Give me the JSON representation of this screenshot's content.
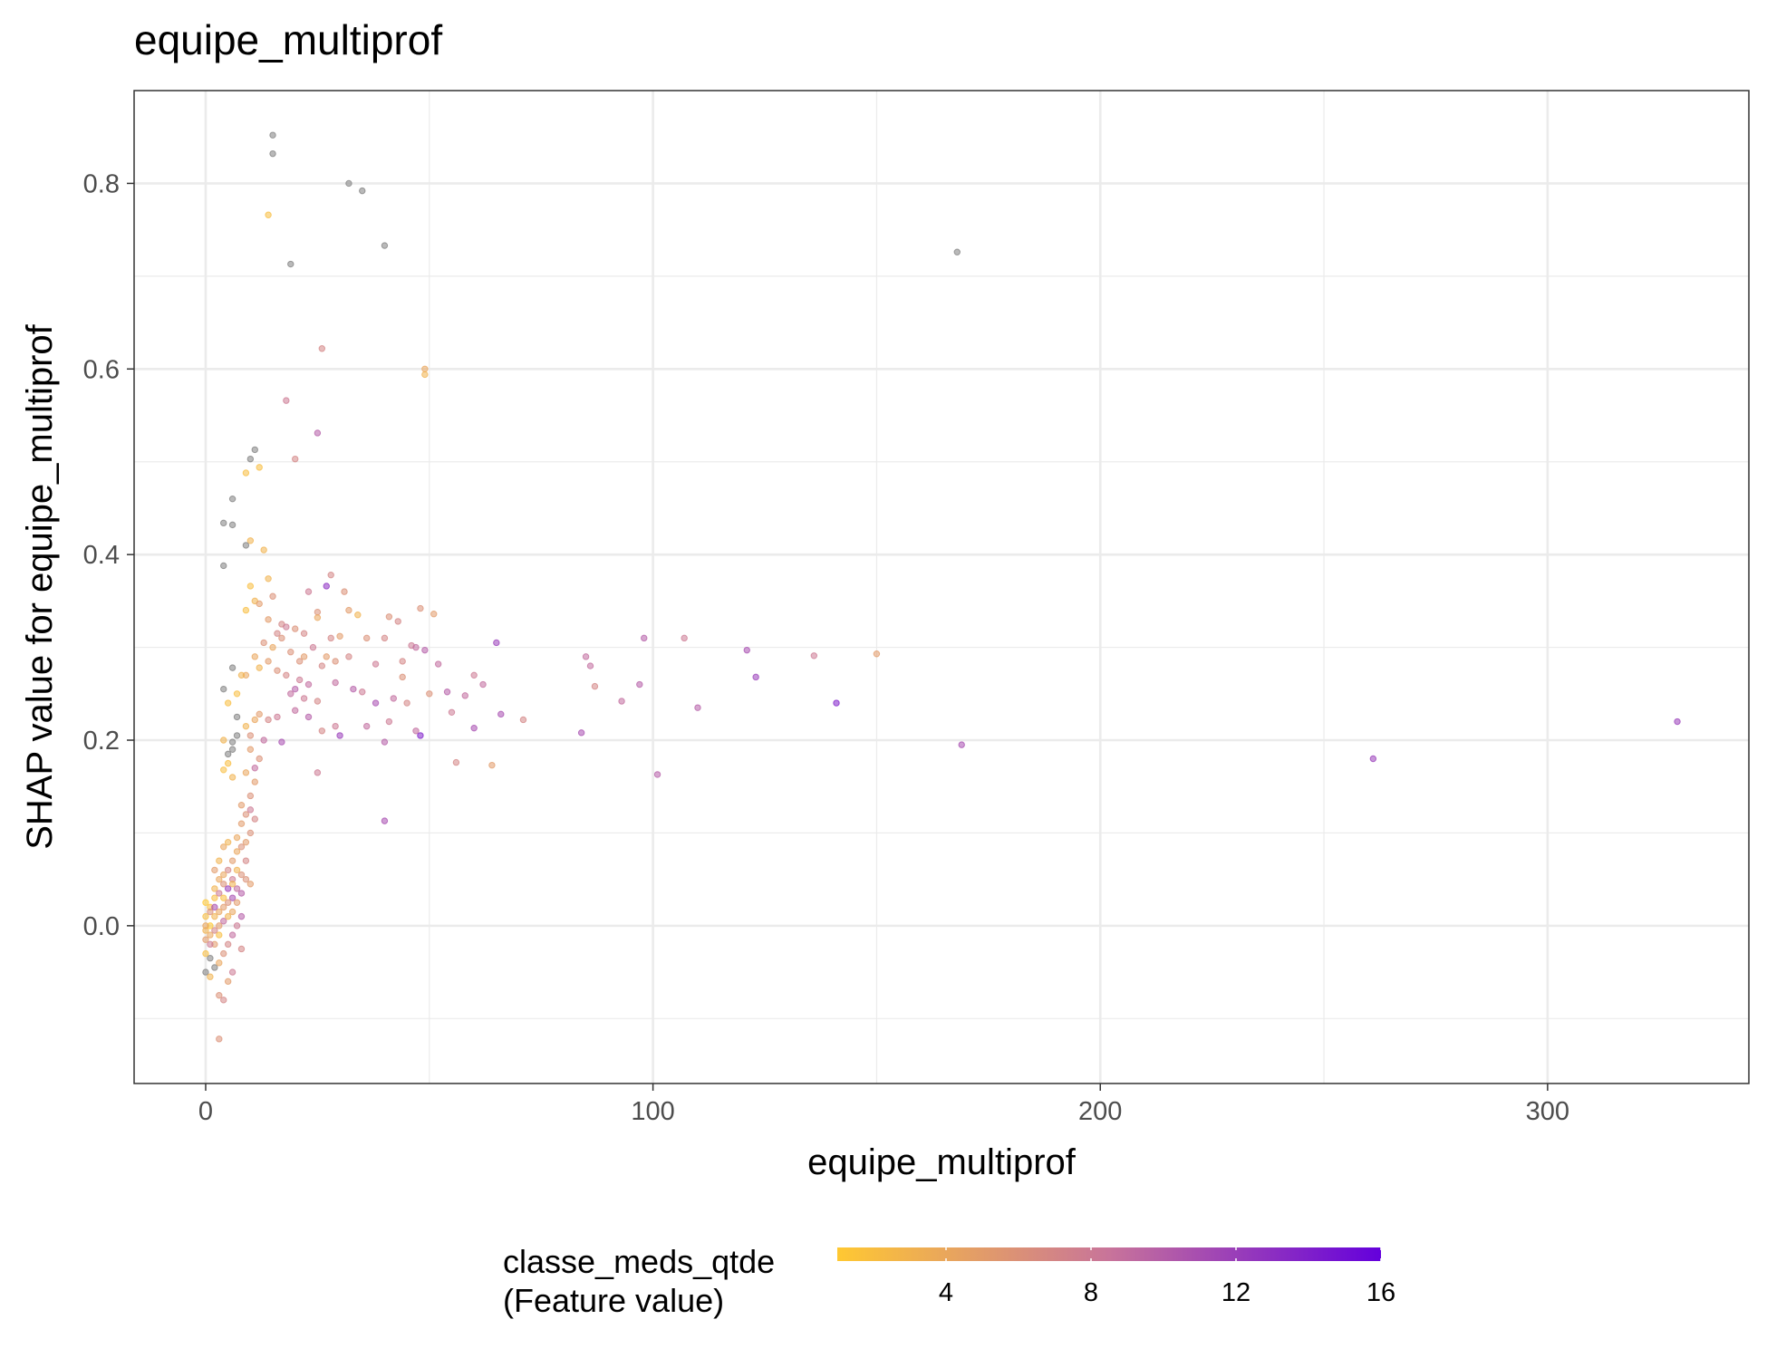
{
  "chart_data": {
    "type": "scatter",
    "title": "equipe_multiprof",
    "xlabel": "equipe_multiprof",
    "ylabel": "SHAP value for equipe_multiprof",
    "xlim": [
      -16,
      345
    ],
    "ylim": [
      -0.17,
      0.9
    ],
    "x_ticks": [
      0,
      100,
      200,
      300
    ],
    "x_tick_labels": [
      "0",
      "100",
      "200",
      "300"
    ],
    "y_ticks": [
      0.0,
      0.2,
      0.4,
      0.6,
      0.8
    ],
    "y_tick_labels": [
      "0.0",
      "0.2",
      "0.4",
      "0.6",
      "0.8"
    ],
    "grid": true,
    "legend": {
      "position": "bottom",
      "title_line1": "classe_meds_qtde",
      "title_line2": "(Feature value)",
      "range": [
        1,
        16
      ],
      "ticks": [
        4,
        8,
        12,
        16
      ],
      "tick_labels": [
        "4",
        "8",
        "12",
        "16"
      ],
      "low_color": "#FFC832",
      "mid_color": "#C8749A",
      "high_color": "#6400DC",
      "na_color": "#7f7f7f"
    },
    "points": [
      {
        "x": 15,
        "y": 0.852,
        "c": null
      },
      {
        "x": 15,
        "y": 0.832,
        "c": null
      },
      {
        "x": 32,
        "y": 0.8,
        "c": null
      },
      {
        "x": 35,
        "y": 0.792,
        "c": null
      },
      {
        "x": 14,
        "y": 0.766,
        "c": 2
      },
      {
        "x": 40,
        "y": 0.733,
        "c": null
      },
      {
        "x": 168,
        "y": 0.726,
        "c": null
      },
      {
        "x": 19,
        "y": 0.713,
        "c": null
      },
      {
        "x": 26,
        "y": 0.622,
        "c": 7
      },
      {
        "x": 49,
        "y": 0.6,
        "c": 4
      },
      {
        "x": 49,
        "y": 0.594,
        "c": 3
      },
      {
        "x": 18,
        "y": 0.566,
        "c": 8
      },
      {
        "x": 25,
        "y": 0.531,
        "c": 10
      },
      {
        "x": 11,
        "y": 0.513,
        "c": null
      },
      {
        "x": 10,
        "y": 0.503,
        "c": null
      },
      {
        "x": 20,
        "y": 0.503,
        "c": 7
      },
      {
        "x": 12,
        "y": 0.494,
        "c": 2
      },
      {
        "x": 9,
        "y": 0.488,
        "c": 2
      },
      {
        "x": 6,
        "y": 0.46,
        "c": null
      },
      {
        "x": 4,
        "y": 0.434,
        "c": null
      },
      {
        "x": 6,
        "y": 0.432,
        "c": null
      },
      {
        "x": 10,
        "y": 0.415,
        "c": 3
      },
      {
        "x": 9,
        "y": 0.41,
        "c": null
      },
      {
        "x": 13,
        "y": 0.405,
        "c": 3
      },
      {
        "x": 4,
        "y": 0.388,
        "c": null
      },
      {
        "x": 28,
        "y": 0.378,
        "c": 7
      },
      {
        "x": 27,
        "y": 0.366,
        "c": 13
      },
      {
        "x": 14,
        "y": 0.374,
        "c": 3
      },
      {
        "x": 10,
        "y": 0.366,
        "c": 2
      },
      {
        "x": 15,
        "y": 0.355,
        "c": 6
      },
      {
        "x": 31,
        "y": 0.36,
        "c": 6
      },
      {
        "x": 23,
        "y": 0.36,
        "c": 8
      },
      {
        "x": 11,
        "y": 0.35,
        "c": 3
      },
      {
        "x": 12,
        "y": 0.347,
        "c": 5
      },
      {
        "x": 32,
        "y": 0.34,
        "c": 5
      },
      {
        "x": 34,
        "y": 0.335,
        "c": 3
      },
      {
        "x": 41,
        "y": 0.333,
        "c": 6
      },
      {
        "x": 43,
        "y": 0.328,
        "c": 7
      },
      {
        "x": 48,
        "y": 0.342,
        "c": 6
      },
      {
        "x": 51,
        "y": 0.336,
        "c": 5
      },
      {
        "x": 25,
        "y": 0.338,
        "c": 6
      },
      {
        "x": 25,
        "y": 0.332,
        "c": 4
      },
      {
        "x": 14,
        "y": 0.33,
        "c": 5
      },
      {
        "x": 9,
        "y": 0.34,
        "c": 2
      },
      {
        "x": 17,
        "y": 0.325,
        "c": 7
      },
      {
        "x": 18,
        "y": 0.322,
        "c": 8
      },
      {
        "x": 20,
        "y": 0.32,
        "c": 6
      },
      {
        "x": 22,
        "y": 0.315,
        "c": 7
      },
      {
        "x": 16,
        "y": 0.315,
        "c": 7
      },
      {
        "x": 28,
        "y": 0.31,
        "c": 7
      },
      {
        "x": 30,
        "y": 0.312,
        "c": 5
      },
      {
        "x": 36,
        "y": 0.31,
        "c": 6
      },
      {
        "x": 40,
        "y": 0.31,
        "c": 7
      },
      {
        "x": 46,
        "y": 0.302,
        "c": 8
      },
      {
        "x": 47,
        "y": 0.3,
        "c": 9
      },
      {
        "x": 49,
        "y": 0.297,
        "c": 10
      },
      {
        "x": 65,
        "y": 0.305,
        "c": 12
      },
      {
        "x": 98,
        "y": 0.31,
        "c": 10
      },
      {
        "x": 107,
        "y": 0.31,
        "c": 8
      },
      {
        "x": 121,
        "y": 0.297,
        "c": 11
      },
      {
        "x": 136,
        "y": 0.291,
        "c": 8
      },
      {
        "x": 150,
        "y": 0.293,
        "c": 5
      },
      {
        "x": 85,
        "y": 0.29,
        "c": 9
      },
      {
        "x": 86,
        "y": 0.28,
        "c": 9
      },
      {
        "x": 52,
        "y": 0.282,
        "c": 9
      },
      {
        "x": 44,
        "y": 0.285,
        "c": 7
      },
      {
        "x": 38,
        "y": 0.282,
        "c": 8
      },
      {
        "x": 29,
        "y": 0.285,
        "c": 6
      },
      {
        "x": 26,
        "y": 0.28,
        "c": 7
      },
      {
        "x": 22,
        "y": 0.29,
        "c": 5
      },
      {
        "x": 19,
        "y": 0.295,
        "c": 6
      },
      {
        "x": 15,
        "y": 0.3,
        "c": 4
      },
      {
        "x": 13,
        "y": 0.305,
        "c": 6
      },
      {
        "x": 11,
        "y": 0.29,
        "c": 4
      },
      {
        "x": 14,
        "y": 0.285,
        "c": 5
      },
      {
        "x": 12,
        "y": 0.278,
        "c": 3
      },
      {
        "x": 9,
        "y": 0.27,
        "c": 4
      },
      {
        "x": 16,
        "y": 0.275,
        "c": 6
      },
      {
        "x": 18,
        "y": 0.27,
        "c": 7
      },
      {
        "x": 21,
        "y": 0.265,
        "c": 8
      },
      {
        "x": 23,
        "y": 0.26,
        "c": 9
      },
      {
        "x": 20,
        "y": 0.255,
        "c": 10
      },
      {
        "x": 19,
        "y": 0.25,
        "c": 9
      },
      {
        "x": 22,
        "y": 0.245,
        "c": 8
      },
      {
        "x": 25,
        "y": 0.242,
        "c": 7
      },
      {
        "x": 29,
        "y": 0.262,
        "c": 9
      },
      {
        "x": 33,
        "y": 0.255,
        "c": 10
      },
      {
        "x": 35,
        "y": 0.252,
        "c": 8
      },
      {
        "x": 38,
        "y": 0.24,
        "c": 11
      },
      {
        "x": 42,
        "y": 0.245,
        "c": 9
      },
      {
        "x": 45,
        "y": 0.24,
        "c": 7
      },
      {
        "x": 50,
        "y": 0.25,
        "c": 6
      },
      {
        "x": 54,
        "y": 0.252,
        "c": 10
      },
      {
        "x": 58,
        "y": 0.248,
        "c": 9
      },
      {
        "x": 60,
        "y": 0.27,
        "c": 8
      },
      {
        "x": 62,
        "y": 0.26,
        "c": 9
      },
      {
        "x": 66,
        "y": 0.228,
        "c": 11
      },
      {
        "x": 71,
        "y": 0.222,
        "c": 7
      },
      {
        "x": 87,
        "y": 0.258,
        "c": 7
      },
      {
        "x": 93,
        "y": 0.242,
        "c": 9
      },
      {
        "x": 97,
        "y": 0.26,
        "c": 10
      },
      {
        "x": 110,
        "y": 0.235,
        "c": 10
      },
      {
        "x": 123,
        "y": 0.268,
        "c": 12
      },
      {
        "x": 141,
        "y": 0.24,
        "c": 14
      },
      {
        "x": 60,
        "y": 0.213,
        "c": 11
      },
      {
        "x": 55,
        "y": 0.23,
        "c": 8
      },
      {
        "x": 48,
        "y": 0.205,
        "c": 14
      },
      {
        "x": 47,
        "y": 0.21,
        "c": 9
      },
      {
        "x": 40,
        "y": 0.198,
        "c": 10
      },
      {
        "x": 36,
        "y": 0.215,
        "c": 9
      },
      {
        "x": 30,
        "y": 0.205,
        "c": 12
      },
      {
        "x": 29,
        "y": 0.215,
        "c": 8
      },
      {
        "x": 26,
        "y": 0.21,
        "c": 7
      },
      {
        "x": 23,
        "y": 0.225,
        "c": 10
      },
      {
        "x": 20,
        "y": 0.232,
        "c": 9
      },
      {
        "x": 16,
        "y": 0.225,
        "c": 8
      },
      {
        "x": 14,
        "y": 0.222,
        "c": 7
      },
      {
        "x": 12,
        "y": 0.228,
        "c": 5
      },
      {
        "x": 11,
        "y": 0.222,
        "c": 4
      },
      {
        "x": 9,
        "y": 0.215,
        "c": 3
      },
      {
        "x": 17,
        "y": 0.198,
        "c": 11
      },
      {
        "x": 13,
        "y": 0.2,
        "c": 9
      },
      {
        "x": 10,
        "y": 0.205,
        "c": 6
      },
      {
        "x": 7,
        "y": 0.205,
        "c": null
      },
      {
        "x": 6,
        "y": 0.198,
        "c": null
      },
      {
        "x": 6,
        "y": 0.19,
        "c": null
      },
      {
        "x": 5,
        "y": 0.185,
        "c": null
      },
      {
        "x": 4,
        "y": 0.2,
        "c": 3
      },
      {
        "x": 5,
        "y": 0.175,
        "c": 2
      },
      {
        "x": 4,
        "y": 0.168,
        "c": 2
      },
      {
        "x": 6,
        "y": 0.16,
        "c": 3
      },
      {
        "x": 9,
        "y": 0.165,
        "c": 4
      },
      {
        "x": 11,
        "y": 0.155,
        "c": 5
      },
      {
        "x": 10,
        "y": 0.14,
        "c": 6
      },
      {
        "x": 8,
        "y": 0.13,
        "c": 5
      },
      {
        "x": 11,
        "y": 0.115,
        "c": 7
      },
      {
        "x": 10,
        "y": 0.1,
        "c": 6
      },
      {
        "x": 9,
        "y": 0.09,
        "c": 5
      },
      {
        "x": 8,
        "y": 0.085,
        "c": 6
      },
      {
        "x": 7,
        "y": 0.08,
        "c": 4
      },
      {
        "x": 5,
        "y": 0.09,
        "c": 3
      },
      {
        "x": 4,
        "y": 0.085,
        "c": 4
      },
      {
        "x": 3,
        "y": 0.07,
        "c": 3
      },
      {
        "x": 2,
        "y": 0.06,
        "c": 5
      },
      {
        "x": 3,
        "y": 0.05,
        "c": 4
      },
      {
        "x": 4,
        "y": 0.045,
        "c": 6
      },
      {
        "x": 5,
        "y": 0.06,
        "c": 7
      },
      {
        "x": 6,
        "y": 0.05,
        "c": 8
      },
      {
        "x": 7,
        "y": 0.04,
        "c": 9
      },
      {
        "x": 8,
        "y": 0.035,
        "c": 10
      },
      {
        "x": 9,
        "y": 0.05,
        "c": 6
      },
      {
        "x": 10,
        "y": 0.045,
        "c": 5
      },
      {
        "x": 6,
        "y": 0.03,
        "c": 11
      },
      {
        "x": 5,
        "y": 0.025,
        "c": 6
      },
      {
        "x": 4,
        "y": 0.02,
        "c": 5
      },
      {
        "x": 3,
        "y": 0.015,
        "c": 4
      },
      {
        "x": 2,
        "y": 0.01,
        "c": 3
      },
      {
        "x": 1,
        "y": 0.02,
        "c": 2
      },
      {
        "x": 0,
        "y": 0.01,
        "c": 2
      },
      {
        "x": 0,
        "y": -0.005,
        "c": 3
      },
      {
        "x": 1,
        "y": -0.01,
        "c": 4
      },
      {
        "x": 2,
        "y": -0.02,
        "c": 5
      },
      {
        "x": 0,
        "y": -0.03,
        "c": 2
      },
      {
        "x": 1,
        "y": -0.035,
        "c": null
      },
      {
        "x": 2,
        "y": -0.045,
        "c": null
      },
      {
        "x": 0,
        "y": -0.05,
        "c": null
      },
      {
        "x": 1,
        "y": -0.055,
        "c": 3
      },
      {
        "x": 3,
        "y": -0.04,
        "c": 4
      },
      {
        "x": 4,
        "y": -0.03,
        "c": 6
      },
      {
        "x": 5,
        "y": -0.02,
        "c": 7
      },
      {
        "x": 6,
        "y": -0.01,
        "c": 9
      },
      {
        "x": 7,
        "y": 0.0,
        "c": 8
      },
      {
        "x": 8,
        "y": 0.01,
        "c": 10
      },
      {
        "x": 3,
        "y": 0.0,
        "c": 5
      },
      {
        "x": 2,
        "y": 0.03,
        "c": 2
      },
      {
        "x": 1,
        "y": 0.0,
        "c": 1
      },
      {
        "x": 0,
        "y": 0.025,
        "c": 1
      },
      {
        "x": 3,
        "y": -0.075,
        "c": 6
      },
      {
        "x": 4,
        "y": -0.08,
        "c": 7
      },
      {
        "x": 3,
        "y": -0.122,
        "c": 6
      },
      {
        "x": 6,
        "y": -0.05,
        "c": 8
      },
      {
        "x": 5,
        "y": -0.06,
        "c": 5
      },
      {
        "x": 8,
        "y": -0.025,
        "c": 7
      },
      {
        "x": 2,
        "y": 0.04,
        "c": 3
      },
      {
        "x": 4,
        "y": 0.055,
        "c": 4
      },
      {
        "x": 6,
        "y": 0.07,
        "c": 5
      },
      {
        "x": 7,
        "y": 0.06,
        "c": 3
      },
      {
        "x": 8,
        "y": 0.055,
        "c": 6
      },
      {
        "x": 9,
        "y": 0.07,
        "c": 7
      },
      {
        "x": 5,
        "y": 0.04,
        "c": 12
      },
      {
        "x": 3,
        "y": 0.035,
        "c": 8
      },
      {
        "x": 1,
        "y": 0.015,
        "c": 6
      },
      {
        "x": 0,
        "y": -0.015,
        "c": 5
      },
      {
        "x": 2,
        "y": -0.005,
        "c": 7
      },
      {
        "x": 4,
        "y": 0.005,
        "c": 9
      },
      {
        "x": 6,
        "y": 0.015,
        "c": 4
      },
      {
        "x": 7,
        "y": 0.025,
        "c": 5
      },
      {
        "x": 5,
        "y": 0.01,
        "c": 3
      },
      {
        "x": 2,
        "y": 0.02,
        "c": 11
      },
      {
        "x": 0,
        "y": 0.0,
        "c": 4
      },
      {
        "x": 1,
        "y": -0.02,
        "c": 8
      },
      {
        "x": 3,
        "y": -0.01,
        "c": 2
      },
      {
        "x": 4,
        "y": 0.03,
        "c": 2
      },
      {
        "x": 6,
        "y": 0.045,
        "c": 3
      },
      {
        "x": 7,
        "y": 0.095,
        "c": 4
      },
      {
        "x": 8,
        "y": 0.11,
        "c": 5
      },
      {
        "x": 9,
        "y": 0.12,
        "c": 6
      },
      {
        "x": 10,
        "y": 0.125,
        "c": 8
      },
      {
        "x": 11,
        "y": 0.17,
        "c": 9
      },
      {
        "x": 12,
        "y": 0.18,
        "c": 6
      },
      {
        "x": 10,
        "y": 0.19,
        "c": 5
      },
      {
        "x": 8,
        "y": 0.27,
        "c": 3
      },
      {
        "x": 7,
        "y": 0.25,
        "c": 2
      },
      {
        "x": 5,
        "y": 0.24,
        "c": 2
      },
      {
        "x": 4,
        "y": 0.255,
        "c": null
      },
      {
        "x": 6,
        "y": 0.278,
        "c": null
      },
      {
        "x": 7,
        "y": 0.225,
        "c": null
      },
      {
        "x": 17,
        "y": 0.31,
        "c": 6
      },
      {
        "x": 24,
        "y": 0.3,
        "c": 8
      },
      {
        "x": 21,
        "y": 0.285,
        "c": 6
      },
      {
        "x": 27,
        "y": 0.29,
        "c": 5
      },
      {
        "x": 32,
        "y": 0.29,
        "c": 7
      },
      {
        "x": 44,
        "y": 0.268,
        "c": 6
      },
      {
        "x": 41,
        "y": 0.22,
        "c": 8
      },
      {
        "x": 64,
        "y": 0.173,
        "c": 5
      },
      {
        "x": 56,
        "y": 0.176,
        "c": 7
      },
      {
        "x": 40,
        "y": 0.113,
        "c": 11
      },
      {
        "x": 25,
        "y": 0.165,
        "c": 8
      },
      {
        "x": 101,
        "y": 0.163,
        "c": 10
      },
      {
        "x": 84,
        "y": 0.208,
        "c": 11
      },
      {
        "x": 169,
        "y": 0.195,
        "c": 11
      },
      {
        "x": 261,
        "y": 0.18,
        "c": 12
      },
      {
        "x": 329,
        "y": 0.22,
        "c": 12
      }
    ]
  }
}
